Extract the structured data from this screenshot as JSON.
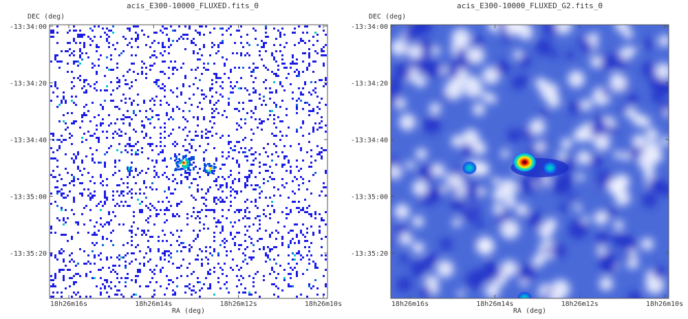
{
  "chart_data": [
    {
      "type": "heatmap",
      "title": "acis_E300-10000_FLUXED.fits_0",
      "xlabel": "RA (deg)",
      "ylabel": "DEC (deg)",
      "x_ticks": [
        "18h26m16s",
        "18h26m14s",
        "18h26m12s",
        "18h26m10s"
      ],
      "y_ticks": [
        "-13:34:00",
        "-13:34:20",
        "-13:34:40",
        "-13:35:00",
        "-13:35:20"
      ],
      "rendering": "sparse binned counts",
      "sources": [
        {
          "ra": "18h26m13.3s",
          "dec": "-13:34:48",
          "level": "bright"
        },
        {
          "ra": "18h26m12.7s",
          "dec": "-13:34:50",
          "level": "medium"
        },
        {
          "ra": "18h26m14.6s",
          "dec": "-13:34:50",
          "level": "faint"
        }
      ]
    },
    {
      "type": "heatmap",
      "title": "acis_E300-10000_FLUXED_G2.fits_0",
      "xlabel": "RA (deg)",
      "ylabel": "DEC (deg)",
      "x_ticks": [
        "18h26m16s",
        "18h26m14s",
        "18h26m12s",
        "18h26m10s"
      ],
      "y_ticks": [
        "-13:34:00",
        "-13:34:20",
        "-13:34:40",
        "-13:35:00",
        "-13:35:20"
      ],
      "rendering": "gaussian smoothed",
      "sources": [
        {
          "ra": "18h26m13.3s",
          "dec": "-13:34:48",
          "level": "bright"
        },
        {
          "ra": "18h26m12.7s",
          "dec": "-13:34:50",
          "level": "medium"
        },
        {
          "ra": "18h26m14.6s",
          "dec": "-13:34:50",
          "level": "medium"
        },
        {
          "ra": "18h26m13.3s",
          "dec": "-13:35:36",
          "level": "medium"
        }
      ]
    }
  ],
  "colors": {
    "background": "#ffffff",
    "frame": "#555555",
    "low": "#1a1ae6",
    "mid": "#00c8c8",
    "high": "#ff2000",
    "peak": "#2a0000"
  }
}
